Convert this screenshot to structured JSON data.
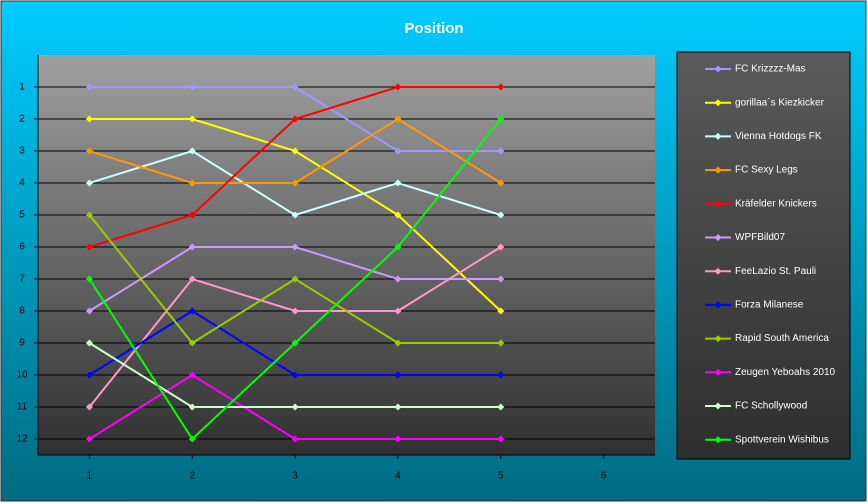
{
  "chart_data": {
    "type": "line",
    "title": "Position",
    "x": [
      1,
      2,
      3,
      4,
      5
    ],
    "xlim": [
      0.5,
      6.5
    ],
    "xticks": [
      1,
      2,
      3,
      4,
      5,
      6
    ],
    "ylim": [
      12.5,
      0
    ],
    "yticks": [
      1,
      2,
      3,
      4,
      5,
      6,
      7,
      8,
      9,
      10,
      11,
      12
    ],
    "grid": true,
    "legend": "right",
    "series": [
      {
        "name": "FC Krizzzz-Mas",
        "color": "#9999ff",
        "values": [
          1,
          1,
          1,
          3,
          3
        ]
      },
      {
        "name": "gorillaa´s Kiezkicker",
        "color": "#ffff00",
        "values": [
          2,
          2,
          3,
          5,
          8
        ]
      },
      {
        "name": "Vienna Hotdogs FK",
        "color": "#ccffff",
        "values": [
          4,
          3,
          5,
          4,
          5
        ]
      },
      {
        "name": "FC Sexy Legs",
        "color": "#ff9900",
        "values": [
          3,
          4,
          4,
          2,
          4
        ]
      },
      {
        "name": "Kräfelder Knickers",
        "color": "#ff0000",
        "values": [
          6,
          5,
          2,
          1,
          1
        ]
      },
      {
        "name": "WPFBild07",
        "color": "#cc99ff",
        "values": [
          8,
          6,
          6,
          7,
          7
        ]
      },
      {
        "name": "FeeLazio St. Pauli",
        "color": "#ff99cc",
        "values": [
          11,
          7,
          8,
          8,
          6
        ]
      },
      {
        "name": "Forza Milanese",
        "color": "#0000ff",
        "values": [
          10,
          8,
          10,
          10,
          10
        ]
      },
      {
        "name": "Rapid South America",
        "color": "#99cc00",
        "values": [
          5,
          9,
          7,
          9,
          9
        ]
      },
      {
        "name": "Zeugen Yeboahs 2010",
        "color": "#ff00ff",
        "values": [
          12,
          10,
          12,
          12,
          12
        ]
      },
      {
        "name": "FC Schollywood",
        "color": "#ccffcc",
        "values": [
          9,
          11,
          11,
          11,
          11
        ]
      },
      {
        "name": "Spottverein Wishibus",
        "color": "#00ff00",
        "values": [
          7,
          12,
          9,
          6,
          2
        ]
      }
    ]
  }
}
